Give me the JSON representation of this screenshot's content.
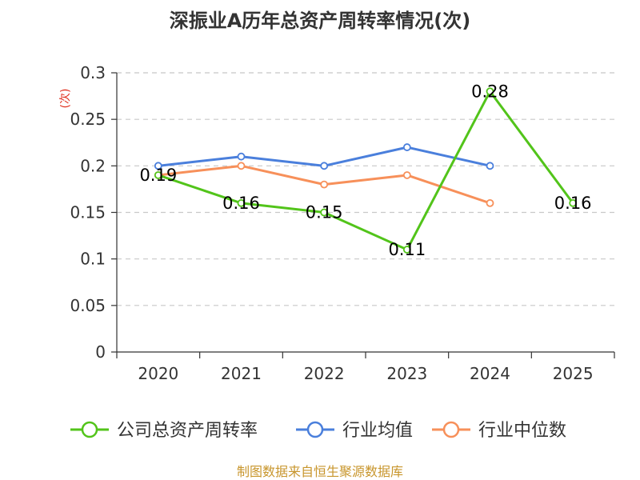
{
  "chart_data": {
    "type": "line",
    "title": "深振业A历年总资产周转率情况(次)",
    "ylabel": "(次)",
    "xlabel": "",
    "categories": [
      "2020",
      "2021",
      "2022",
      "2023",
      "2024",
      "2025"
    ],
    "ylim": [
      0,
      0.3
    ],
    "yticks": [
      "0",
      "0.05",
      "0.1",
      "0.15",
      "0.2",
      "0.25",
      "0.3"
    ],
    "grid": true,
    "legend_position": "bottom",
    "series": [
      {
        "name": "公司总资产周转率",
        "color": "#52c41a",
        "values": [
          0.19,
          0.16,
          0.15,
          0.11,
          0.28,
          0.16
        ],
        "labels": [
          "0.19",
          "0.16",
          "0.15",
          "0.11",
          "0.28",
          "0.16"
        ]
      },
      {
        "name": "行业均值",
        "color": "#4a7fdc",
        "values": [
          0.2,
          0.21,
          0.2,
          0.22,
          0.2,
          null
        ]
      },
      {
        "name": "行业中位数",
        "color": "#f7905a",
        "values": [
          0.19,
          0.2,
          0.18,
          0.19,
          0.16,
          null
        ]
      }
    ],
    "source": "制图数据来自恒生聚源数据库"
  }
}
